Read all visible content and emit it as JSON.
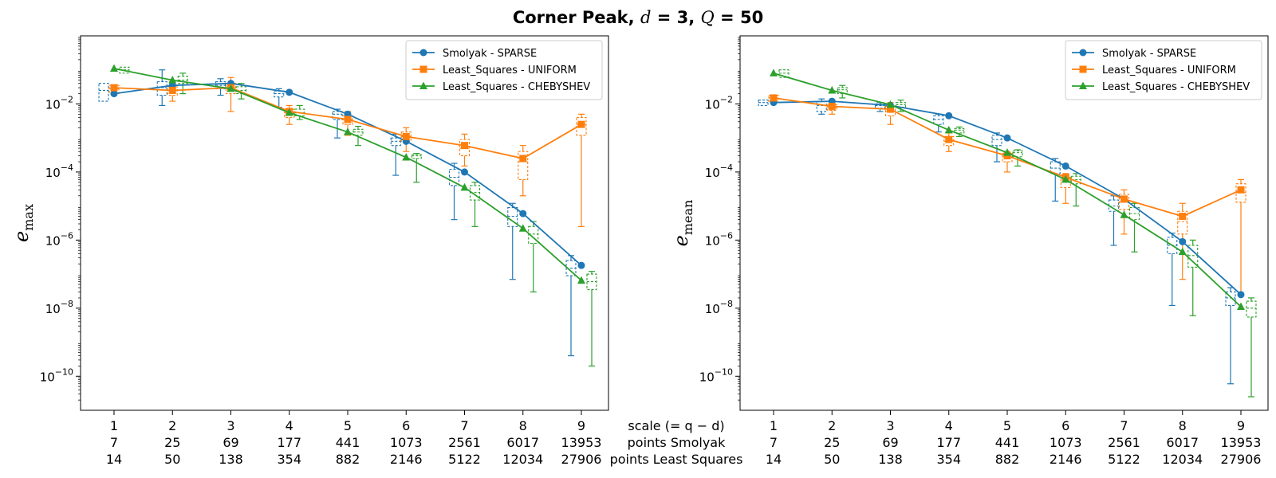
{
  "title": {
    "prefix": "Corner Peak, ",
    "d_var": "d",
    "d_eq": " = 3, ",
    "q_var": "Q",
    "q_eq": " = 50"
  },
  "x_rows": {
    "scale_label": "scale (= q − d)",
    "points_smolyak_label": "points Smolyak",
    "points_ls_label": "points Least Squares",
    "scale": [
      "1",
      "2",
      "3",
      "4",
      "5",
      "6",
      "7",
      "8",
      "9"
    ],
    "points_smolyak": [
      "7",
      "25",
      "69",
      "177",
      "441",
      "1073",
      "2561",
      "6017",
      "13953"
    ],
    "points_least_squares": [
      "14",
      "50",
      "138",
      "354",
      "882",
      "2146",
      "5122",
      "12034",
      "27906"
    ]
  },
  "colors": {
    "SPARSE": "#1f77b4",
    "UNIFORM": "#ff7f0e",
    "CHEBYSHEV": "#2ca02c"
  },
  "chart_data": [
    {
      "type": "line",
      "yscale": "log",
      "ylim": [
        1e-11,
        1
      ],
      "x": [
        1,
        2,
        3,
        4,
        5,
        6,
        7,
        8,
        9
      ],
      "ylabel": "e",
      "ylabel_sub": "max",
      "yticks": [
        {
          "v": 0.01,
          "m": "10",
          "e": "−2"
        },
        {
          "v": 0.0001,
          "m": "10",
          "e": "−4"
        },
        {
          "v": 1e-06,
          "m": "10",
          "e": "−6"
        },
        {
          "v": 1e-08,
          "m": "10",
          "e": "−8"
        },
        {
          "v": 1e-10,
          "m": "10",
          "e": "−10"
        }
      ],
      "legend": "top-right",
      "series": [
        {
          "name": "Smolyak - SPARSE",
          "key": "SPARSE",
          "marker": "circle",
          "values": [
            0.02,
            0.035,
            0.04,
            0.022,
            0.005,
            0.0008,
            0.0001,
            6e-06,
            1.8e-07
          ],
          "box": [
            {
              "wlo": null,
              "q1": 0.012,
              "med": 0.025,
              "q3": 0.04,
              "whi": null
            },
            {
              "wlo": 0.009,
              "q1": 0.018,
              "med": 0.03,
              "q3": 0.045,
              "whi": 0.1
            },
            {
              "wlo": 0.018,
              "q1": 0.028,
              "med": 0.035,
              "q3": 0.045,
              "whi": 0.055
            },
            {
              "wlo": 0.008,
              "q1": 0.016,
              "med": 0.02,
              "q3": 0.024,
              "whi": 0.028
            },
            {
              "wlo": 0.001,
              "q1": 0.0035,
              "med": 0.005,
              "q3": 0.006,
              "whi": 0.007
            },
            {
              "wlo": 8e-05,
              "q1": 0.0006,
              "med": 0.0008,
              "q3": 0.001,
              "whi": 0.0013
            },
            {
              "wlo": 4e-06,
              "q1": 4e-05,
              "med": 7e-05,
              "q3": 0.00012,
              "whi": 0.00018
            },
            {
              "wlo": 7e-08,
              "q1": 2.5e-06,
              "med": 5e-06,
              "q3": 9e-06,
              "whi": 1.2e-05
            },
            {
              "wlo": 4e-10,
              "q1": 9e-08,
              "med": 1.5e-07,
              "q3": 2.5e-07,
              "whi": 3.5e-07
            }
          ]
        },
        {
          "name": "Least_Squares - UNIFORM",
          "key": "UNIFORM",
          "marker": "square",
          "values": [
            0.03,
            0.025,
            0.03,
            0.006,
            0.0035,
            0.0011,
            0.0006,
            0.00025,
            0.0025
          ],
          "box": [
            {
              "wlo": null,
              "q1": 0.02,
              "med": 0.028,
              "q3": 0.035,
              "whi": null
            },
            {
              "wlo": 0.012,
              "q1": 0.018,
              "med": 0.025,
              "q3": 0.032,
              "whi": 0.045
            },
            {
              "wlo": 0.006,
              "q1": 0.02,
              "med": 0.03,
              "q3": 0.04,
              "whi": 0.06
            },
            {
              "wlo": 0.0025,
              "q1": 0.004,
              "med": 0.0055,
              "q3": 0.007,
              "whi": 0.009
            },
            {
              "wlo": 0.0012,
              "q1": 0.0025,
              "med": 0.0035,
              "q3": 0.0045,
              "whi": 0.006
            },
            {
              "wlo": 0.0004,
              "q1": 0.0008,
              "med": 0.0011,
              "q3": 0.0015,
              "whi": 0.002
            },
            {
              "wlo": 0.00015,
              "q1": 0.0003,
              "med": 0.0005,
              "q3": 0.0009,
              "whi": 0.0013
            },
            {
              "wlo": 2e-05,
              "q1": 6e-05,
              "med": 0.0002,
              "q3": 0.0004,
              "whi": 0.0006
            },
            {
              "wlo": 2.5e-06,
              "q1": 0.0012,
              "med": 0.0025,
              "q3": 0.004,
              "whi": 0.005
            }
          ]
        },
        {
          "name": "Least_Squares - CHEBYSHEV",
          "key": "CHEBYSHEV",
          "marker": "triangle",
          "values": [
            0.11,
            0.05,
            0.028,
            0.0055,
            0.0015,
            0.00027,
            3.5e-05,
            2.2e-06,
            6.5e-08
          ],
          "box": [
            {
              "wlo": null,
              "q1": 0.08,
              "med": 0.1,
              "q3": 0.12,
              "whi": null
            },
            {
              "wlo": 0.02,
              "q1": 0.04,
              "med": 0.05,
              "q3": 0.065,
              "whi": 0.08
            },
            {
              "wlo": 0.014,
              "q1": 0.02,
              "med": 0.025,
              "q3": 0.032,
              "whi": 0.04
            },
            {
              "wlo": 0.0035,
              "q1": 0.0045,
              "med": 0.0055,
              "q3": 0.007,
              "whi": 0.009
            },
            {
              "wlo": 0.0006,
              "q1": 0.0012,
              "med": 0.0015,
              "q3": 0.0018,
              "whi": 0.0022
            },
            {
              "wlo": 5e-05,
              "q1": 0.00025,
              "med": 0.0003,
              "q3": 0.00033,
              "whi": 0.00035
            },
            {
              "wlo": 2.5e-06,
              "q1": 1.5e-05,
              "med": 2.5e-05,
              "q3": 4e-05,
              "whi": 5e-05
            },
            {
              "wlo": 3e-08,
              "q1": 8e-07,
              "med": 1.5e-06,
              "q3": 2.5e-06,
              "whi": 3.5e-06
            },
            {
              "wlo": 2e-10,
              "q1": 3.5e-08,
              "med": 6e-08,
              "q3": 1e-07,
              "whi": 1.2e-07
            }
          ]
        }
      ]
    },
    {
      "type": "line",
      "yscale": "log",
      "ylim": [
        1e-11,
        1
      ],
      "x": [
        1,
        2,
        3,
        4,
        5,
        6,
        7,
        8,
        9
      ],
      "ylabel": "e",
      "ylabel_sub": "mean",
      "yticks": [
        {
          "v": 0.01,
          "m": "10",
          "e": "−2"
        },
        {
          "v": 0.0001,
          "m": "10",
          "e": "−4"
        },
        {
          "v": 1e-06,
          "m": "10",
          "e": "−6"
        },
        {
          "v": 1e-08,
          "m": "10",
          "e": "−8"
        },
        {
          "v": 1e-10,
          "m": "10",
          "e": "−10"
        }
      ],
      "legend": "top-right",
      "series": [
        {
          "name": "Smolyak - SPARSE",
          "key": "SPARSE",
          "marker": "circle",
          "values": [
            0.011,
            0.012,
            0.009,
            0.0045,
            0.001,
            0.00015,
            1.6e-05,
            9e-07,
            2.5e-08
          ],
          "box": [
            {
              "wlo": null,
              "q1": 0.009,
              "med": 0.011,
              "q3": 0.013,
              "whi": null
            },
            {
              "wlo": 0.005,
              "q1": 0.006,
              "med": 0.009,
              "q3": 0.012,
              "whi": 0.014
            },
            {
              "wlo": 0.006,
              "q1": 0.0075,
              "med": 0.009,
              "q3": 0.01,
              "whi": 0.011
            },
            {
              "wlo": 0.0015,
              "q1": 0.0025,
              "med": 0.0035,
              "q3": 0.0045,
              "whi": 0.005
            },
            {
              "wlo": 0.0002,
              "q1": 0.0006,
              "med": 0.0009,
              "q3": 0.0012,
              "whi": 0.0014
            },
            {
              "wlo": 1.4e-05,
              "q1": 9e-05,
              "med": 0.00013,
              "q3": 0.0002,
              "whi": 0.00025
            },
            {
              "wlo": 7e-07,
              "q1": 7e-06,
              "med": 1e-05,
              "q3": 1.5e-05,
              "whi": 2e-05
            },
            {
              "wlo": 1.2e-08,
              "q1": 4e-07,
              "med": 7e-07,
              "q3": 1.2e-06,
              "whi": 1.6e-06
            },
            {
              "wlo": 6e-11,
              "q1": 1.2e-08,
              "med": 2e-08,
              "q3": 3e-08,
              "whi": 4e-08
            }
          ]
        },
        {
          "name": "Least_Squares - UNIFORM",
          "key": "UNIFORM",
          "marker": "square",
          "values": [
            0.015,
            0.0085,
            0.007,
            0.0009,
            0.0003,
            7e-05,
            1.6e-05,
            5e-06,
            3e-05
          ],
          "box": [
            {
              "wlo": null,
              "q1": 0.012,
              "med": 0.015,
              "q3": 0.018,
              "whi": null
            },
            {
              "wlo": 0.005,
              "q1": 0.0065,
              "med": 0.008,
              "q3": 0.0095,
              "whi": 0.011
            },
            {
              "wlo": 0.0025,
              "q1": 0.0045,
              "med": 0.006,
              "q3": 0.0085,
              "whi": 0.011
            },
            {
              "wlo": 0.0004,
              "q1": 0.0006,
              "med": 0.0008,
              "q3": 0.0011,
              "whi": 0.0014
            },
            {
              "wlo": 0.0001,
              "q1": 0.0002,
              "med": 0.00028,
              "q3": 0.00035,
              "whi": 0.0004
            },
            {
              "wlo": 1.2e-05,
              "q1": 3.5e-05,
              "med": 5e-05,
              "q3": 7e-05,
              "whi": 9e-05
            },
            {
              "wlo": 1.5e-06,
              "q1": 8e-06,
              "med": 1.3e-05,
              "q3": 2.2e-05,
              "whi": 3e-05
            },
            {
              "wlo": 7e-08,
              "q1": 1.5e-06,
              "med": 3.5e-06,
              "q3": 7e-06,
              "whi": 1.2e-05
            },
            {
              "wlo": 2.5e-08,
              "q1": 1.3e-05,
              "med": 2.5e-05,
              "q3": 4.5e-05,
              "whi": 6e-05
            }
          ]
        },
        {
          "name": "Least_Squares - CHEBYSHEV",
          "key": "CHEBYSHEV",
          "marker": "triangle",
          "values": [
            0.08,
            0.025,
            0.0095,
            0.0017,
            0.00037,
            6e-05,
            5.5e-06,
            4.5e-07,
            1.1e-08
          ],
          "box": [
            {
              "wlo": null,
              "q1": 0.06,
              "med": 0.08,
              "q3": 0.1,
              "whi": null
            },
            {
              "wlo": 0.015,
              "q1": 0.02,
              "med": 0.026,
              "q3": 0.03,
              "whi": 0.035
            },
            {
              "wlo": 0.006,
              "q1": 0.008,
              "med": 0.0095,
              "q3": 0.011,
              "whi": 0.013
            },
            {
              "wlo": 0.0011,
              "q1": 0.0014,
              "med": 0.0017,
              "q3": 0.0019,
              "whi": 0.0021
            },
            {
              "wlo": 0.00015,
              "q1": 0.00028,
              "med": 0.00037,
              "q3": 0.00042,
              "whi": 0.00045
            },
            {
              "wlo": 1e-05,
              "q1": 4.5e-05,
              "med": 6e-05,
              "q3": 7.5e-05,
              "whi": 9e-05
            },
            {
              "wlo": 4.5e-07,
              "q1": 4e-06,
              "med": 6e-06,
              "q3": 9e-06,
              "whi": 1.2e-05
            },
            {
              "wlo": 6e-09,
              "q1": 1.6e-07,
              "med": 3.5e-07,
              "q3": 7e-07,
              "whi": 1e-06
            },
            {
              "wlo": 2.5e-11,
              "q1": 5.5e-09,
              "med": 1e-08,
              "q3": 1.6e-08,
              "whi": 2e-08
            }
          ]
        }
      ]
    }
  ]
}
